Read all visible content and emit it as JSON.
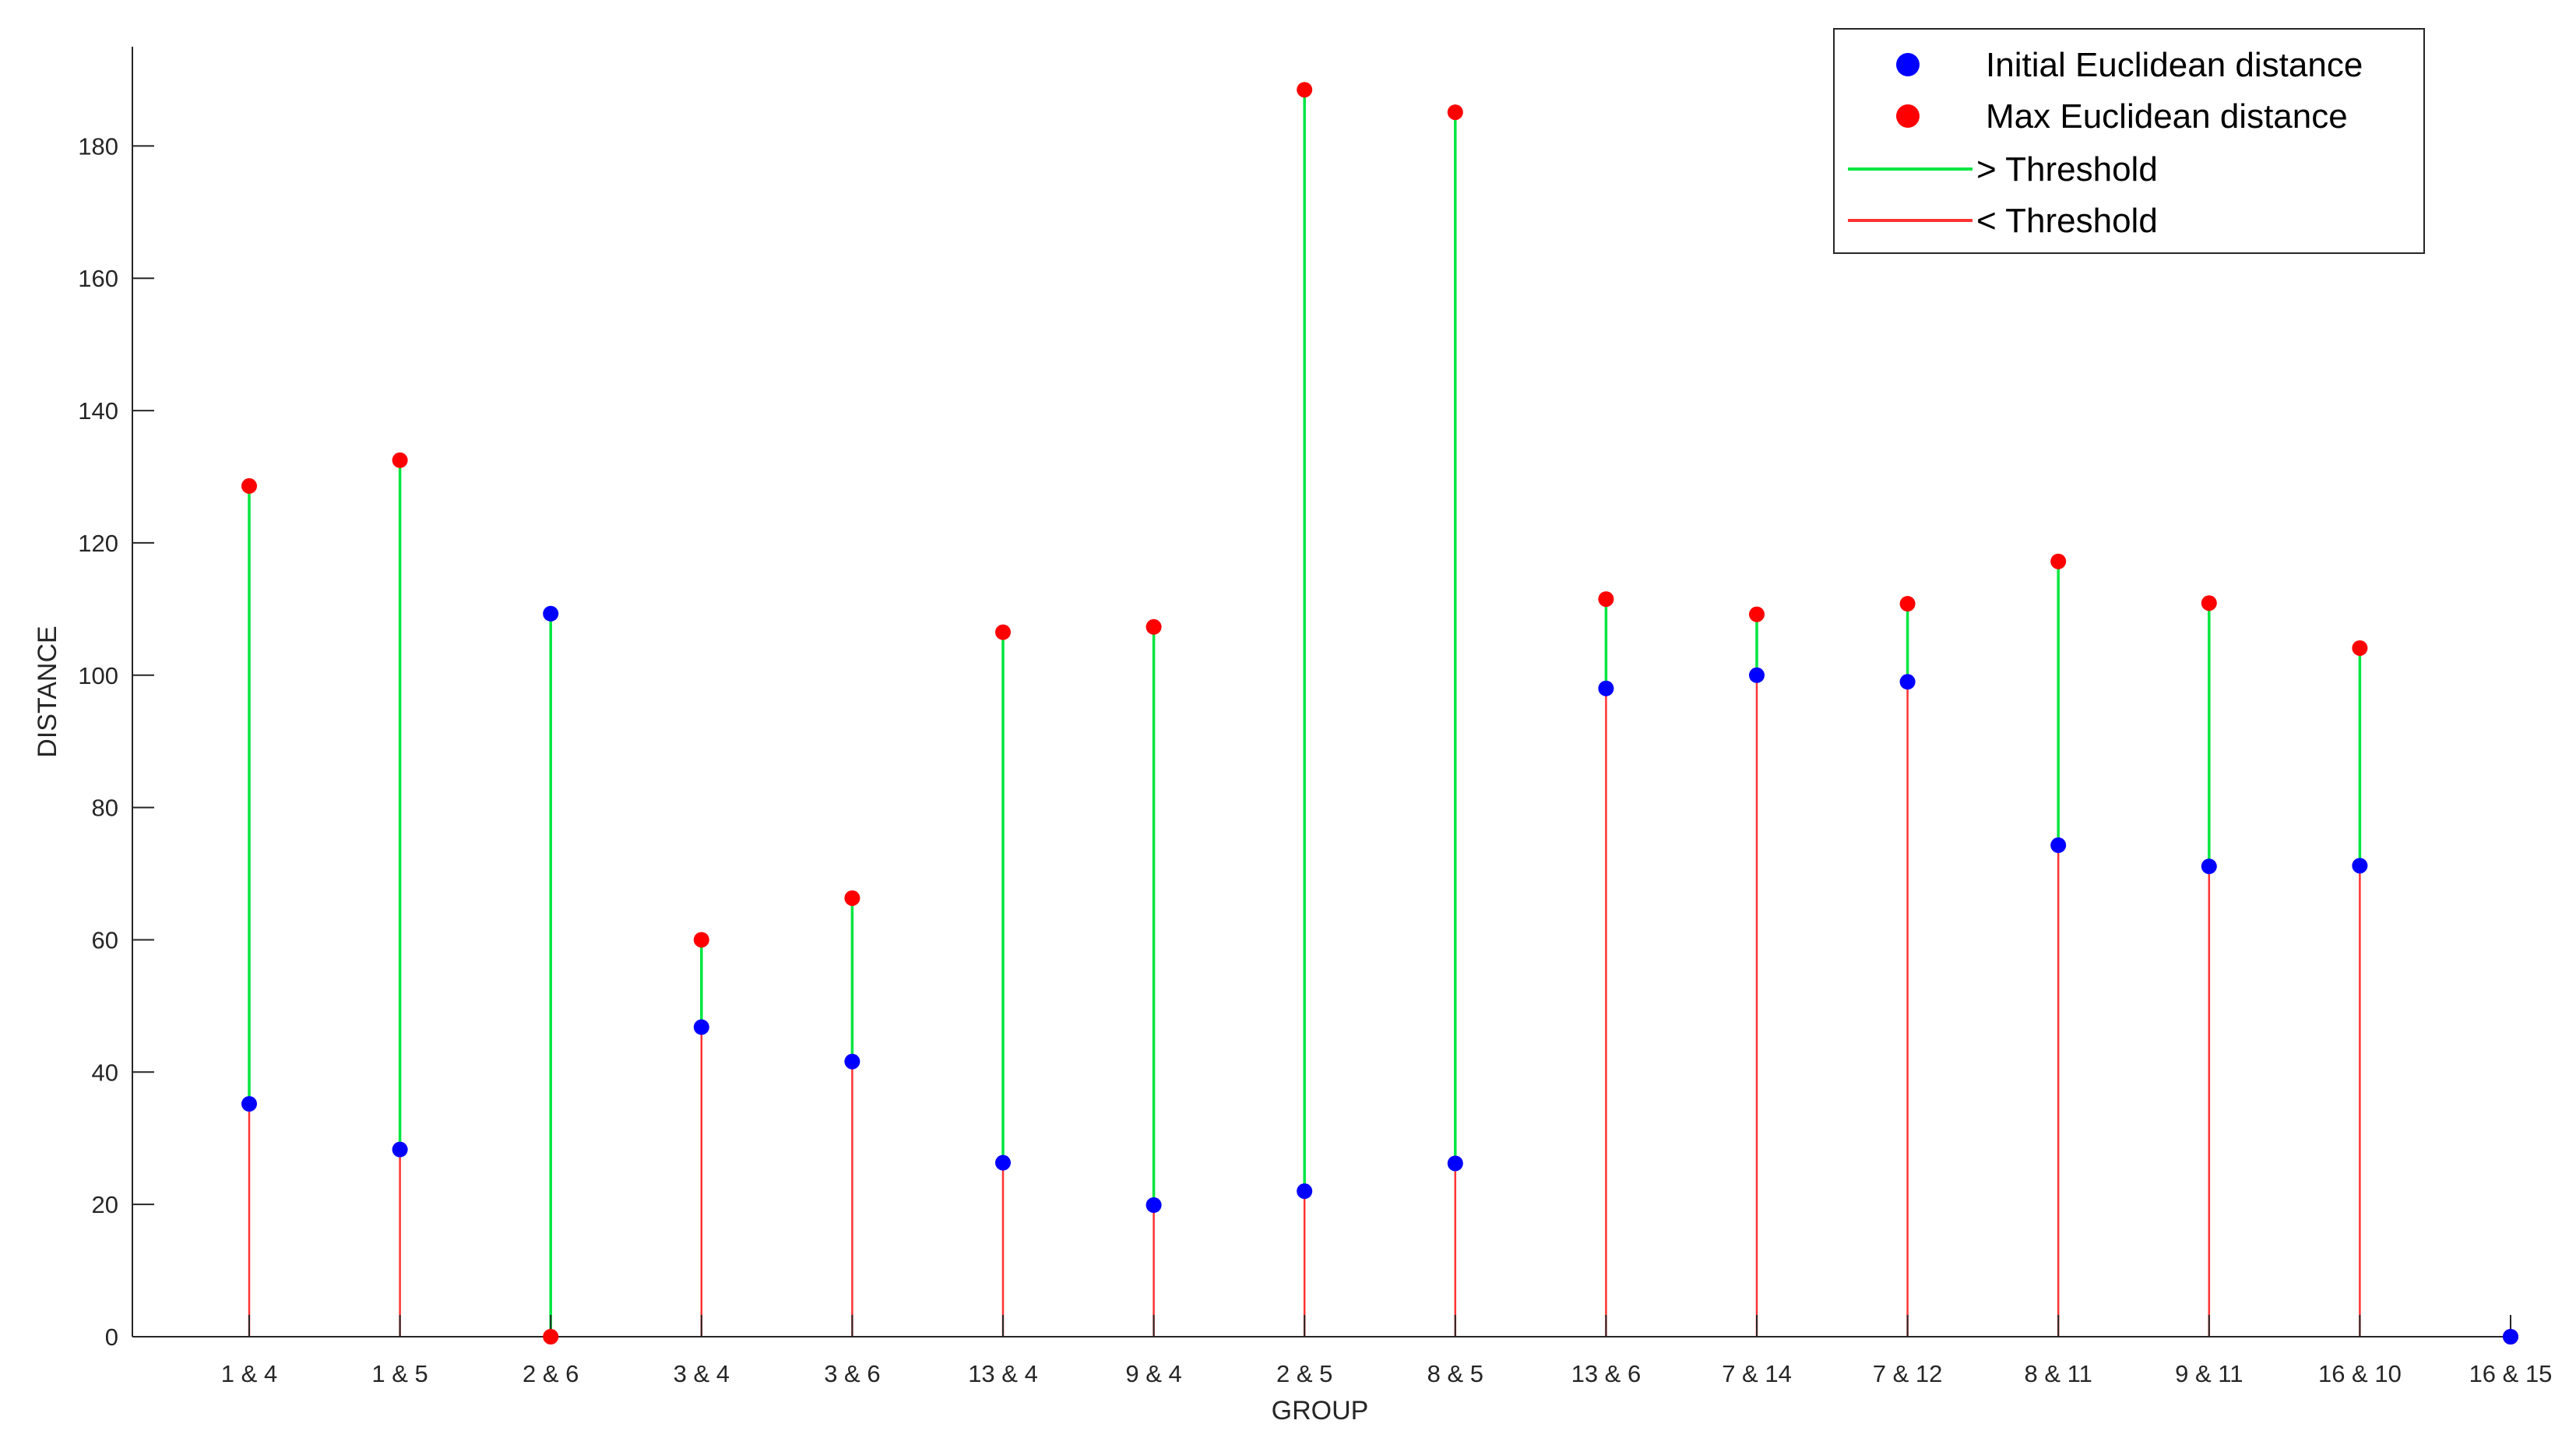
{
  "chart_data": {
    "type": "scatter",
    "xlabel": "GROUP",
    "ylabel": "DISTANCE",
    "ylim": [
      0,
      195
    ],
    "yticks": [
      0,
      20,
      40,
      60,
      80,
      100,
      120,
      140,
      160,
      180
    ],
    "grid": false,
    "legend_position": "top-right",
    "categories": [
      "1 & 4",
      "1 & 5",
      "2 & 6",
      "3 & 4",
      "3 & 6",
      "13 & 4",
      "9 & 4",
      "2 & 5",
      "8 & 5",
      "13 & 6",
      "7 & 14",
      "7 & 12",
      "8 & 11",
      "9 & 11",
      "16 & 10",
      "16 & 15"
    ],
    "series": [
      {
        "name": "Initial Euclidean distance",
        "marker": "dot",
        "color": "#0000ff",
        "values": [
          35.2,
          28.3,
          109.3,
          46.8,
          41.6,
          26.3,
          19.9,
          22.0,
          26.2,
          98.0,
          100.0,
          99.0,
          74.3,
          71.1,
          71.2,
          0.0
        ]
      },
      {
        "name": "Max Euclidean distance",
        "marker": "dot",
        "color": "#ff0000",
        "values": [
          128.6,
          132.5,
          0.0,
          60.0,
          66.3,
          106.5,
          107.3,
          188.5,
          185.1,
          111.5,
          109.2,
          110.8,
          117.2,
          110.9,
          104.1,
          0.0
        ]
      },
      {
        "name": "> Threshold",
        "marker": "line",
        "color": "#00e640"
      },
      {
        "name": "< Threshold",
        "marker": "line",
        "color": "#ff3333"
      }
    ]
  }
}
